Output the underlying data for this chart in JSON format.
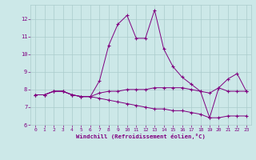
{
  "x": [
    0,
    1,
    2,
    3,
    4,
    5,
    6,
    7,
    8,
    9,
    10,
    11,
    12,
    13,
    14,
    15,
    16,
    17,
    18,
    19,
    20,
    21,
    22,
    23
  ],
  "line1": [
    7.7,
    7.7,
    7.9,
    7.9,
    7.7,
    7.6,
    7.6,
    8.5,
    10.5,
    11.7,
    12.2,
    10.9,
    10.9,
    12.5,
    10.3,
    9.3,
    8.7,
    8.3,
    7.9,
    6.4,
    8.1,
    8.6,
    8.9,
    7.9
  ],
  "line2": [
    7.7,
    7.7,
    7.9,
    7.9,
    7.7,
    7.6,
    7.6,
    7.8,
    7.9,
    7.9,
    8.0,
    8.0,
    8.0,
    8.1,
    8.1,
    8.1,
    8.1,
    8.0,
    7.9,
    7.8,
    8.1,
    7.9,
    7.9,
    7.9
  ],
  "line3": [
    7.7,
    7.7,
    7.9,
    7.9,
    7.7,
    7.6,
    7.6,
    7.5,
    7.4,
    7.3,
    7.2,
    7.1,
    7.0,
    6.9,
    6.9,
    6.8,
    6.8,
    6.7,
    6.6,
    6.4,
    6.4,
    6.5,
    6.5,
    6.5
  ],
  "line_color": "#800080",
  "bg_color": "#cce8e8",
  "grid_color": "#aacccc",
  "xlabel": "Windchill (Refroidissement éolien,°C)",
  "ylim_min": 6.0,
  "ylim_max": 12.8,
  "xlim_min": -0.5,
  "xlim_max": 23.5,
  "yticks": [
    6,
    7,
    8,
    9,
    10,
    11,
    12
  ],
  "xticks": [
    0,
    1,
    2,
    3,
    4,
    5,
    6,
    7,
    8,
    9,
    10,
    11,
    12,
    13,
    14,
    15,
    16,
    17,
    18,
    19,
    20,
    21,
    22,
    23
  ],
  "font_color": "#800080"
}
